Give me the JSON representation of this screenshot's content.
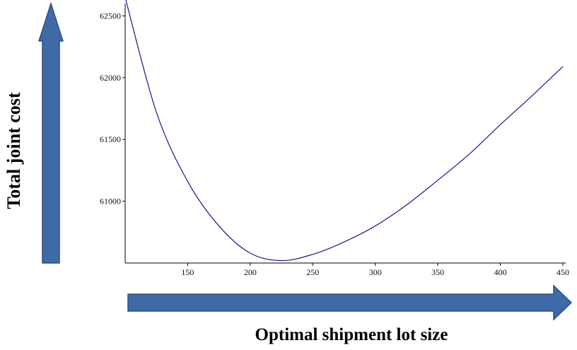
{
  "chart_data": {
    "type": "line",
    "title": "",
    "xlabel": "Optimal shipment lot size",
    "ylabel": "Total joint cost",
    "xlim": [
      100,
      450
    ],
    "ylim": [
      60500,
      62600
    ],
    "x_ticks": [
      150,
      200,
      250,
      300,
      350,
      400,
      450
    ],
    "y_ticks": [
      61000,
      61500,
      62000,
      62500
    ],
    "x_tick_labels": [
      "150",
      "200",
      "250",
      "300",
      "350",
      "400",
      "450"
    ],
    "y_tick_labels": [
      "61000",
      "61500",
      "62000",
      "62500"
    ],
    "grid": false,
    "legend": "none",
    "series": [
      {
        "x": [
          100,
          125,
          150,
          175,
          200,
          225,
          250,
          275,
          300,
          325,
          350,
          375,
          400,
          425,
          450
        ],
        "y": [
          62650,
          61720,
          61160,
          60800,
          60580,
          60520,
          60570,
          60670,
          60800,
          60970,
          61170,
          61380,
          61620,
          61850,
          62090
        ]
      }
    ],
    "colors": {
      "line": "#1a1a8a",
      "arrow_fill": "#3f6aa8",
      "arrow_stroke": "#2e4f86",
      "axis": "#000000"
    }
  }
}
